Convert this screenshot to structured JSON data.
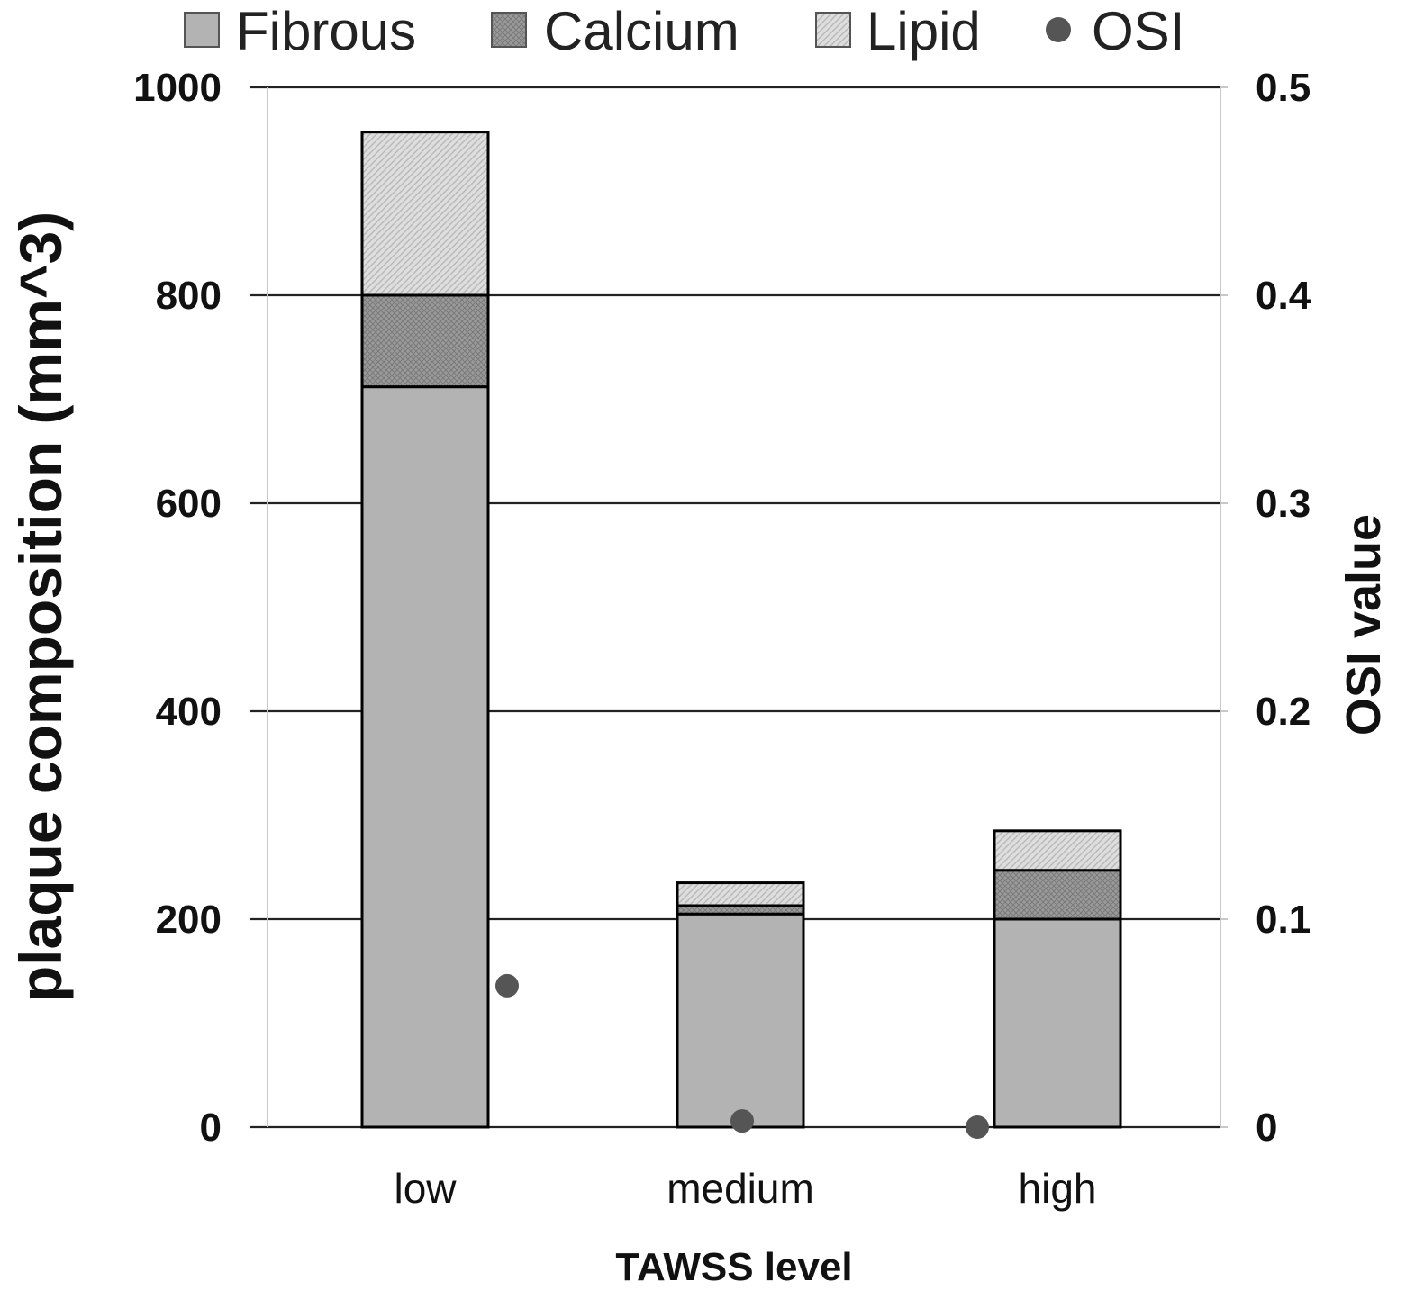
{
  "chart_data": {
    "type": "bar",
    "stacked": true,
    "categories": [
      "low",
      "medium",
      "high"
    ],
    "series": [
      {
        "name": "Fibrous",
        "axis": "left",
        "values": [
          712,
          205,
          200
        ],
        "color": "#b3b3b3",
        "pattern": "solid"
      },
      {
        "name": "Calcium",
        "axis": "left",
        "values": [
          88,
          8,
          47
        ],
        "color": "#8f8f8f",
        "pattern": "crosshatch"
      },
      {
        "name": "Lipid",
        "axis": "left",
        "values": [
          157,
          22,
          38
        ],
        "color": "#d9d9d9",
        "pattern": "diagonal"
      },
      {
        "name": "OSI",
        "axis": "right",
        "type": "scatter",
        "values": [
          0.068,
          0.003,
          0.0
        ],
        "color": "#555555"
      }
    ],
    "xlabel": "TAWSS level",
    "ylabel": "plaque composition (mm^3)",
    "y2label": "OSI value",
    "ylim": [
      0,
      1000
    ],
    "y2lim": [
      0,
      0.5
    ],
    "yticks": [
      "0",
      "200",
      "400",
      "600",
      "800",
      "1000"
    ],
    "y2ticks": [
      "0",
      "0.1",
      "0.2",
      "0.3",
      "0.4",
      "0.5"
    ],
    "grid": true,
    "legend": {
      "position": "top",
      "entries": [
        "Fibrous",
        "Calcium",
        "Lipid",
        "OSI"
      ]
    }
  }
}
